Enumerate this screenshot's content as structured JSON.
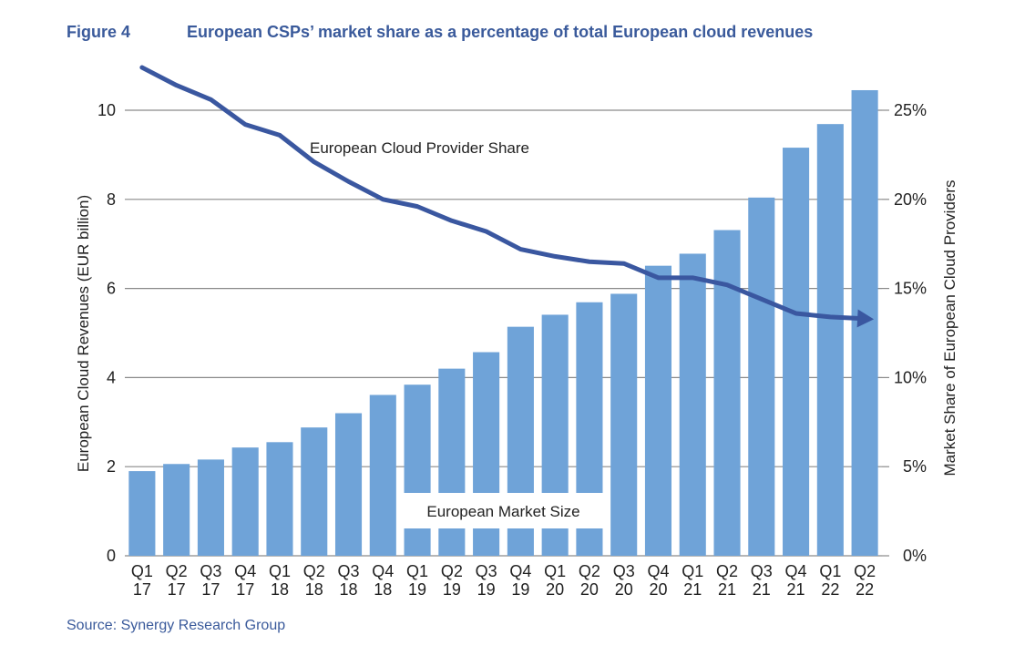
{
  "figure": {
    "label": "Figure 4",
    "title": "European CSPs’ market share as a percentage of total European cloud revenues",
    "source": "Source: Synergy Research Group"
  },
  "chart_data": {
    "type": "bar+line",
    "title": "European CSPs’ market share as a percentage of total European cloud revenues",
    "categories": [
      [
        "Q1",
        "17"
      ],
      [
        "Q2",
        "17"
      ],
      [
        "Q3",
        "17"
      ],
      [
        "Q4",
        "17"
      ],
      [
        "Q1",
        "18"
      ],
      [
        "Q2",
        "18"
      ],
      [
        "Q3",
        "18"
      ],
      [
        "Q4",
        "18"
      ],
      [
        "Q1",
        "19"
      ],
      [
        "Q2",
        "19"
      ],
      [
        "Q3",
        "19"
      ],
      [
        "Q4",
        "19"
      ],
      [
        "Q1",
        "20"
      ],
      [
        "Q2",
        "20"
      ],
      [
        "Q3",
        "20"
      ],
      [
        "Q4",
        "20"
      ],
      [
        "Q1",
        "21"
      ],
      [
        "Q2",
        "21"
      ],
      [
        "Q3",
        "21"
      ],
      [
        "Q4",
        "21"
      ],
      [
        "Q1",
        "22"
      ],
      [
        "Q2",
        "22"
      ]
    ],
    "series": [
      {
        "name": "European Market Size",
        "type": "bar",
        "axis": "left",
        "color": "#6fa3d8",
        "values": [
          1.9,
          2.06,
          2.16,
          2.43,
          2.55,
          2.88,
          3.2,
          3.61,
          3.84,
          4.2,
          4.57,
          5.14,
          5.41,
          5.69,
          5.88,
          6.51,
          6.78,
          7.31,
          8.04,
          9.16,
          9.69,
          10.45
        ]
      },
      {
        "name": "European Cloud Provider Share",
        "type": "line",
        "axis": "right",
        "color": "#3a57a0",
        "unit": "%",
        "values": [
          27.4,
          26.4,
          25.6,
          24.2,
          23.6,
          22.1,
          21.0,
          20.0,
          19.6,
          18.8,
          18.2,
          17.2,
          16.8,
          16.5,
          16.4,
          15.6,
          15.6,
          15.2,
          14.4,
          13.6,
          13.4,
          13.3
        ]
      }
    ],
    "left_axis": {
      "label": "European Cloud Revenues (EUR billion)",
      "range": [
        0,
        10
      ],
      "ticks": [
        0,
        2,
        4,
        6,
        8,
        10
      ],
      "tick_labels": [
        "0",
        "2",
        "4",
        "6",
        "8",
        "10"
      ]
    },
    "right_axis": {
      "label": "Market Share of European Cloud Providers",
      "range": [
        0,
        25
      ],
      "ticks": [
        0,
        5,
        10,
        15,
        20,
        25
      ],
      "tick_labels": [
        "0%",
        "5%",
        "10%",
        "15%",
        "20%",
        "25%"
      ]
    },
    "grid": true,
    "annotations": [
      "European Cloud Provider Share",
      "European Market Size"
    ],
    "legend": "none (inline annotations)"
  }
}
